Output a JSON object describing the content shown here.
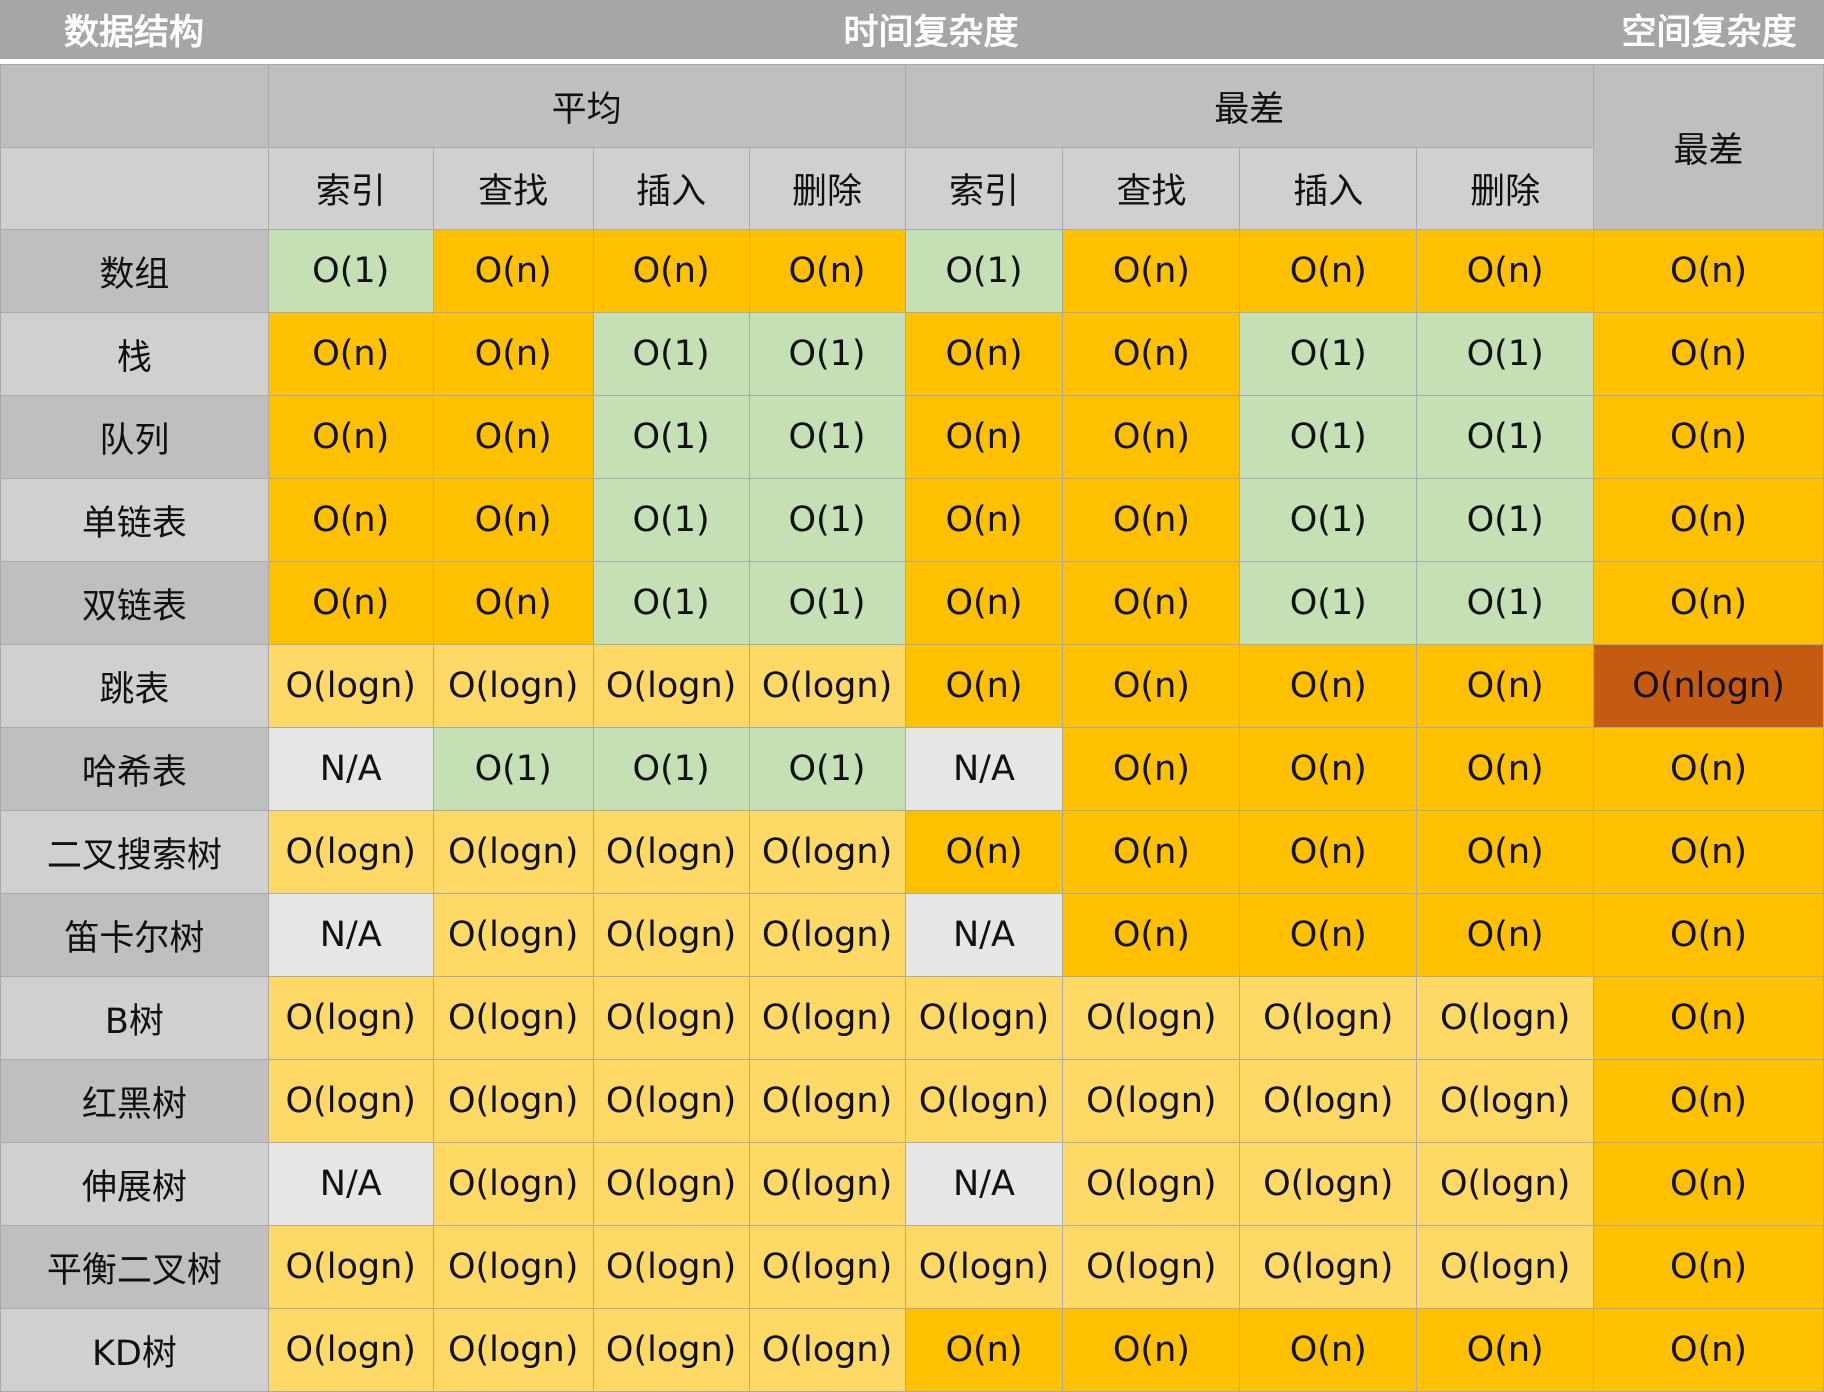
{
  "title_row": {
    "data_structure": "数据结构",
    "time_complexity": "时间复杂度",
    "space_complexity": "空间复杂度"
  },
  "groups": {
    "average": "平均",
    "worst": "最差",
    "space_worst": "最差"
  },
  "operations": [
    "索引",
    "查找",
    "插入",
    "删除",
    "索引",
    "查找",
    "插入",
    "删除"
  ],
  "colors": {
    "O(1)": "#c5e0b4",
    "O(n)": "#ffc000",
    "O(logn)": "#ffd966",
    "N/A": "#e7e6e6",
    "O(nlogn)": "#c55a11"
  },
  "rows": [
    {
      "name": "数组",
      "cells": [
        "O(1)",
        "O(n)",
        "O(n)",
        "O(n)",
        "O(1)",
        "O(n)",
        "O(n)",
        "O(n)",
        "O(n)"
      ]
    },
    {
      "name": "栈",
      "cells": [
        "O(n)",
        "O(n)",
        "O(1)",
        "O(1)",
        "O(n)",
        "O(n)",
        "O(1)",
        "O(1)",
        "O(n)"
      ]
    },
    {
      "name": "队列",
      "cells": [
        "O(n)",
        "O(n)",
        "O(1)",
        "O(1)",
        "O(n)",
        "O(n)",
        "O(1)",
        "O(1)",
        "O(n)"
      ]
    },
    {
      "name": "单链表",
      "cells": [
        "O(n)",
        "O(n)",
        "O(1)",
        "O(1)",
        "O(n)",
        "O(n)",
        "O(1)",
        "O(1)",
        "O(n)"
      ]
    },
    {
      "name": "双链表",
      "cells": [
        "O(n)",
        "O(n)",
        "O(1)",
        "O(1)",
        "O(n)",
        "O(n)",
        "O(1)",
        "O(1)",
        "O(n)"
      ]
    },
    {
      "name": "跳表",
      "cells": [
        "O(logn)",
        "O(logn)",
        "O(logn)",
        "O(logn)",
        "O(n)",
        "O(n)",
        "O(n)",
        "O(n)",
        "O(nlogn)"
      ]
    },
    {
      "name": "哈希表",
      "cells": [
        "N/A",
        "O(1)",
        "O(1)",
        "O(1)",
        "N/A",
        "O(n)",
        "O(n)",
        "O(n)",
        "O(n)"
      ]
    },
    {
      "name": "二叉搜索树",
      "cells": [
        "O(logn)",
        "O(logn)",
        "O(logn)",
        "O(logn)",
        "O(n)",
        "O(n)",
        "O(n)",
        "O(n)",
        "O(n)"
      ]
    },
    {
      "name": "笛卡尔树",
      "cells": [
        "N/A",
        "O(logn)",
        "O(logn)",
        "O(logn)",
        "N/A",
        "O(n)",
        "O(n)",
        "O(n)",
        "O(n)"
      ]
    },
    {
      "name": "B树",
      "cells": [
        "O(logn)",
        "O(logn)",
        "O(logn)",
        "O(logn)",
        "O(logn)",
        "O(logn)",
        "O(logn)",
        "O(logn)",
        "O(n)"
      ]
    },
    {
      "name": "红黑树",
      "cells": [
        "O(logn)",
        "O(logn)",
        "O(logn)",
        "O(logn)",
        "O(logn)",
        "O(logn)",
        "O(logn)",
        "O(logn)",
        "O(n)"
      ]
    },
    {
      "name": "伸展树",
      "cells": [
        "N/A",
        "O(logn)",
        "O(logn)",
        "O(logn)",
        "N/A",
        "O(logn)",
        "O(logn)",
        "O(logn)",
        "O(n)"
      ]
    },
    {
      "name": "平衡二叉树",
      "cells": [
        "O(logn)",
        "O(logn)",
        "O(logn)",
        "O(logn)",
        "O(logn)",
        "O(logn)",
        "O(logn)",
        "O(logn)",
        "O(n)"
      ]
    },
    {
      "name": "KD树",
      "cells": [
        "O(logn)",
        "O(logn)",
        "O(logn)",
        "O(logn)",
        "O(n)",
        "O(n)",
        "O(n)",
        "O(n)",
        "O(n)"
      ]
    }
  ]
}
